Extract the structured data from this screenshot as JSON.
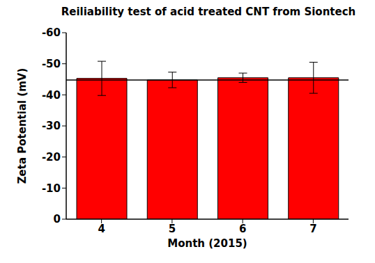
{
  "chart_data": {
    "type": "bar",
    "title": "Reiliability test of acid treated CNT from Siontech",
    "x_label": "Month (2015)",
    "y_label": "Zeta Potential (mV)",
    "categories": [
      "4",
      "5",
      "6",
      "7"
    ],
    "values": [
      -45.3,
      -44.8,
      -45.5,
      -45.5
    ],
    "errors": [
      5.5,
      2.5,
      1.5,
      5
    ],
    "reference_line": -44.8,
    "color": "#ff0000",
    "ylim": [
      0,
      -60
    ],
    "yticks": [
      0,
      -10,
      -20,
      -30,
      -40,
      -50,
      -60
    ],
    "grid": false
  }
}
